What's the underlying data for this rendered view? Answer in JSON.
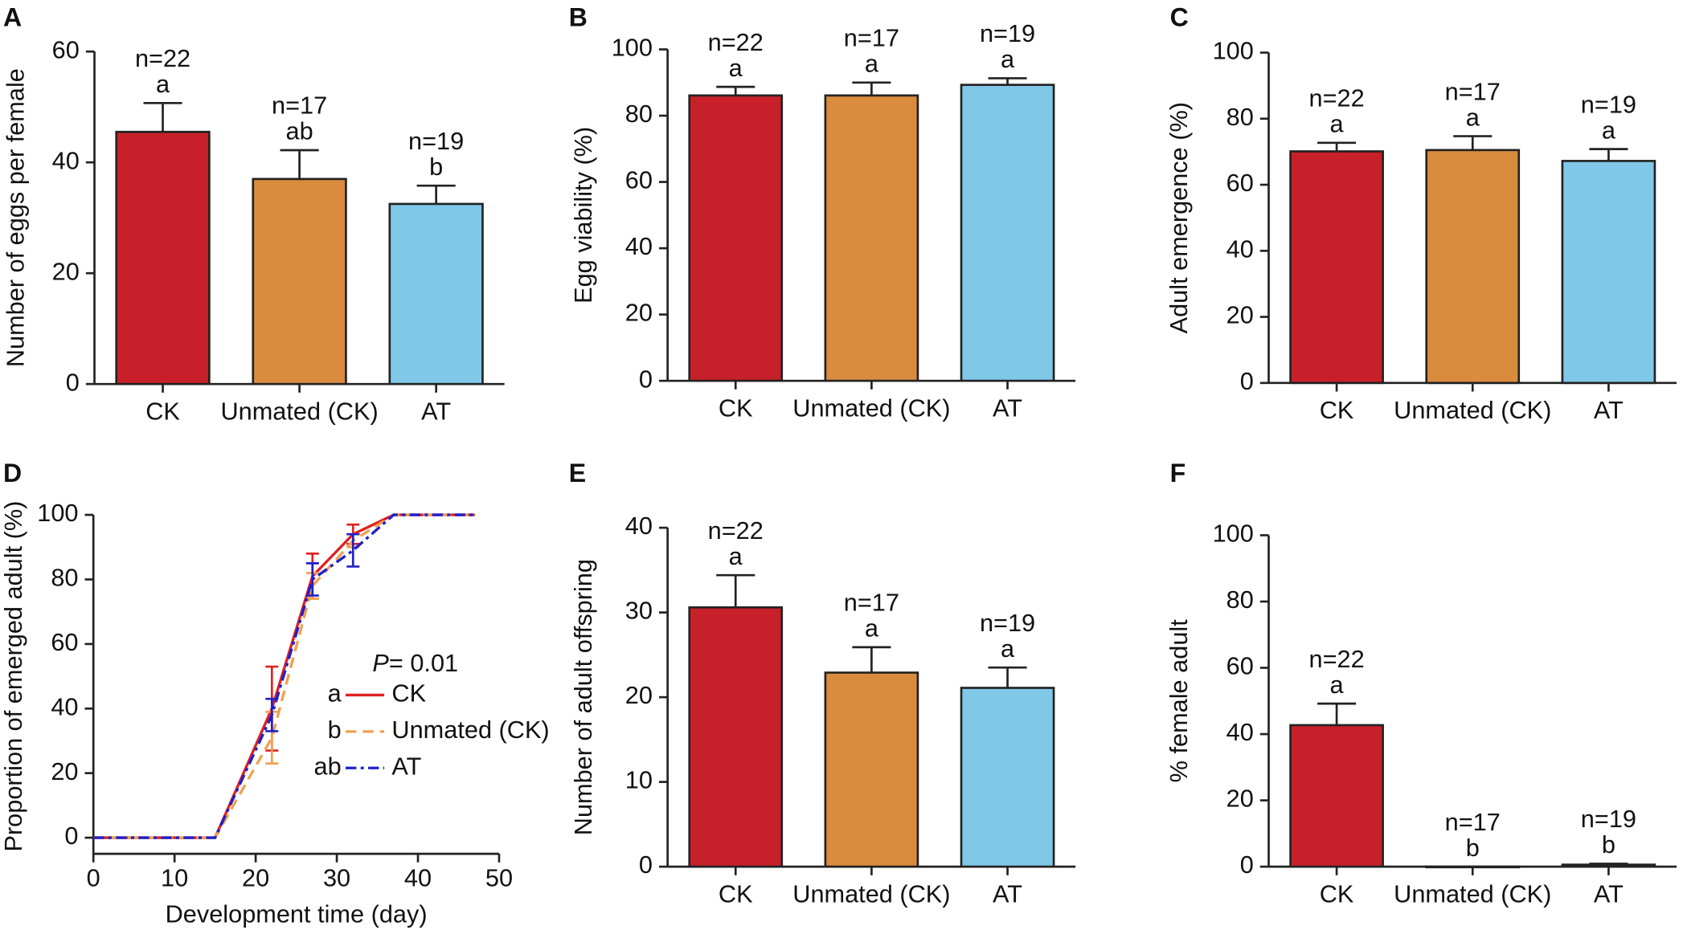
{
  "chart_data": [
    {
      "type": "bar",
      "panel": "A",
      "ylabel": "Number of eggs per female",
      "categories": [
        "CK",
        "Unmated (CK)",
        "AT"
      ],
      "colors": [
        "#c8202a",
        "#d98c3e",
        "#80c8e8"
      ],
      "values": [
        45.5,
        37,
        32.5
      ],
      "errors": [
        5.2,
        5.2,
        3.3
      ],
      "n_labels": [
        "n=22",
        "n=17",
        "n=19"
      ],
      "letters": [
        "a",
        "ab",
        "b"
      ],
      "ylim": [
        0,
        60
      ],
      "yticks": [
        0,
        20,
        40,
        60
      ]
    },
    {
      "type": "bar",
      "panel": "B",
      "ylabel": "Egg viability (%)",
      "categories": [
        "CK",
        "Unmated (CK)",
        "AT"
      ],
      "colors": [
        "#c8202a",
        "#d98c3e",
        "#80c8e8"
      ],
      "values": [
        86.1,
        86.1,
        89.3
      ],
      "errors": [
        2.6,
        3.9,
        2
      ],
      "n_labels": [
        "n=22",
        "n=17",
        "n=19"
      ],
      "letters": [
        "a",
        "a",
        "a"
      ],
      "ylim": [
        0,
        100
      ],
      "yticks": [
        0,
        20,
        40,
        60,
        80,
        100
      ]
    },
    {
      "type": "bar",
      "panel": "C",
      "ylabel": "Adult emergence (%)",
      "categories": [
        "CK",
        "Unmated (CK)",
        "AT"
      ],
      "colors": [
        "#c8202a",
        "#d98c3e",
        "#80c8e8"
      ],
      "values": [
        70.1,
        70.5,
        67.2
      ],
      "errors": [
        2.6,
        4.2,
        3.6
      ],
      "n_labels": [
        "n=22",
        "n=17",
        "n=19"
      ],
      "letters": [
        "a",
        "a",
        "a"
      ],
      "ylim": [
        0,
        100
      ],
      "yticks": [
        0,
        20,
        40,
        60,
        80,
        100
      ]
    },
    {
      "type": "line",
      "panel": "D",
      "xlabel": "Development time (day)",
      "ylabel": "Proportion of emerged adult (%)",
      "x": [
        0,
        15,
        22,
        27,
        32,
        37,
        47
      ],
      "series": [
        {
          "name": "CK",
          "letter": "a",
          "color": "#e02020",
          "line_style": "solid",
          "values": [
            0,
            0,
            40,
            81,
            94,
            100,
            100
          ],
          "errors": [
            null,
            null,
            13,
            7,
            3,
            null,
            null
          ]
        },
        {
          "name": "Unmated (CK)",
          "letter": "b",
          "color": "#f0a050",
          "line_style": "dashed",
          "values": [
            0,
            0,
            31,
            78,
            92,
            100,
            100
          ],
          "errors": [
            null,
            null,
            8,
            4,
            2,
            null,
            null
          ]
        },
        {
          "name": "AT",
          "letter": "ab",
          "color": "#2020c8",
          "line_style": "dashdot",
          "values": [
            0,
            0,
            38,
            80,
            89,
            100,
            100
          ],
          "errors": [
            null,
            null,
            5,
            5,
            5,
            null,
            null
          ]
        }
      ],
      "annotation": {
        "italic": "P",
        "text": "= 0.01"
      },
      "xlim": [
        0,
        50
      ],
      "xticks": [
        0,
        10,
        20,
        30,
        40,
        50
      ],
      "ylim": [
        0,
        100
      ],
      "yticks": [
        0,
        20,
        40,
        60,
        80,
        100
      ]
    },
    {
      "type": "bar",
      "panel": "E",
      "ylabel": "Number of adult offspring",
      "categories": [
        "CK",
        "Unmated (CK)",
        "AT"
      ],
      "colors": [
        "#c8202a",
        "#d98c3e",
        "#80c8e8"
      ],
      "values": [
        30.6,
        22.9,
        21.1
      ],
      "errors": [
        3.8,
        3.0,
        2.4
      ],
      "n_labels": [
        "n=22",
        "n=17",
        "n=19"
      ],
      "letters": [
        "a",
        "a",
        "a"
      ],
      "ylim": [
        0,
        40
      ],
      "yticks": [
        0,
        10,
        20,
        30,
        40
      ]
    },
    {
      "type": "bar",
      "panel": "F",
      "ylabel": "% female adult",
      "categories": [
        "CK",
        "Unmated (CK)",
        "AT"
      ],
      "colors": [
        "#c8202a",
        "#d98c3e",
        "#80c8e8"
      ],
      "values": [
        42.7,
        0,
        0.6
      ],
      "errors": [
        6.5,
        null,
        0.3
      ],
      "n_labels": [
        "n=22",
        "n=17",
        "n=19"
      ],
      "letters": [
        "a",
        "b",
        "b"
      ],
      "ylim": [
        0,
        100
      ],
      "yticks": [
        0,
        20,
        40,
        60,
        80,
        100
      ]
    }
  ]
}
